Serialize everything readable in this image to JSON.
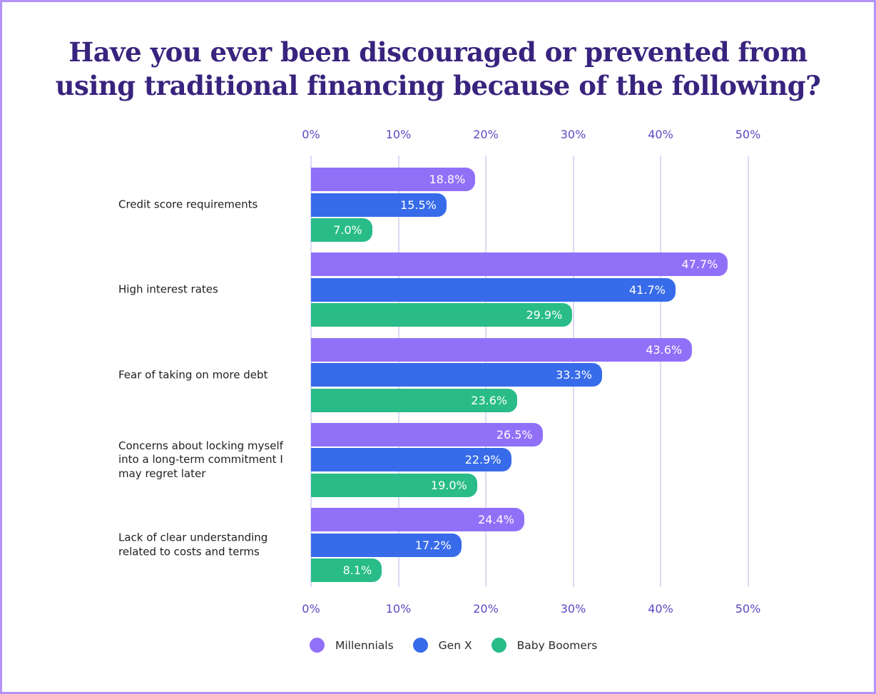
{
  "title": {
    "text": "Have you ever been discouraged or prevented from using traditional financing because of the following?",
    "line1": "Have you ever been discouraged or prevented from",
    "line2": "using traditional financing because of the following?"
  },
  "colors": {
    "frame_border": "#b493f8",
    "title": "#38247e",
    "axis_label": "#5b4ac2",
    "gridline": "#ded9f3",
    "category_label": "#1f1f1f",
    "legend_label": "#2b2b2b",
    "bar_value_label": "#ffffff",
    "millennials": "#9170f8",
    "gen_x": "#376be9",
    "baby_boomers": "#29bc88"
  },
  "chart_data": {
    "type": "bar",
    "orientation": "horizontal",
    "title": "Have you ever been discouraged or prevented from using traditional financing because of the following?",
    "categories": [
      "Credit score requirements",
      "High interest rates",
      "Fear of taking on more debt",
      "Concerns about locking myself into a long-term commitment I may regret later",
      "Lack of clear understanding related to costs and terms"
    ],
    "series": [
      {
        "name": "Millennials",
        "color": "#9170f8",
        "values": [
          18.8,
          47.7,
          43.6,
          26.5,
          24.4
        ]
      },
      {
        "name": "Gen X",
        "color": "#376be9",
        "values": [
          15.5,
          41.7,
          33.3,
          22.9,
          17.2
        ]
      },
      {
        "name": "Baby Boomers",
        "color": "#29bc88",
        "values": [
          7.0,
          29.9,
          23.6,
          19.0,
          8.1
        ]
      }
    ],
    "x_ticks": [
      "0%",
      "10%",
      "20%",
      "30%",
      "40%",
      "50%"
    ],
    "xlim": [
      0,
      50
    ],
    "value_suffix": "%",
    "grid": "vertical",
    "legend_position": "bottom",
    "legend": [
      "Millennials",
      "Gen X",
      "Baby Boomers"
    ]
  }
}
